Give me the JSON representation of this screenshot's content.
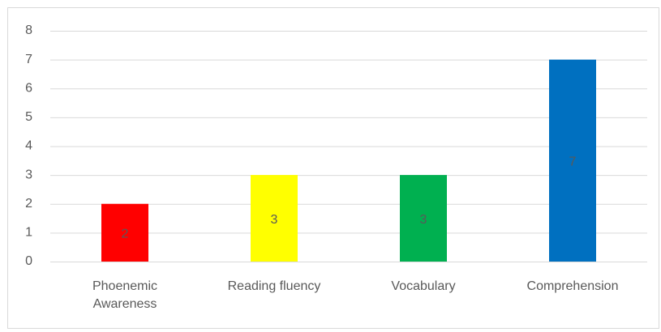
{
  "chart_data": {
    "type": "bar",
    "categories": [
      "Phoenemic Awareness",
      "Reading fluency",
      "Vocabulary",
      "Comprehension"
    ],
    "values": [
      2,
      3,
      3,
      7
    ],
    "colors": [
      "#ff0000",
      "#ffff00",
      "#00b050",
      "#0070c0"
    ],
    "ylim": [
      0,
      8
    ],
    "yticks": [
      0,
      1,
      2,
      3,
      4,
      5,
      6,
      7,
      8
    ],
    "grid": true,
    "data_labels": true
  }
}
